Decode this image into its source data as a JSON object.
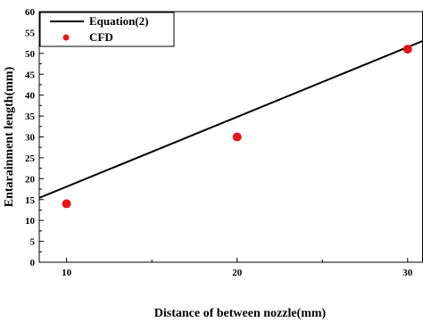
{
  "chart_data": {
    "type": "scatter",
    "xlabel": "Distance of between nozzle(mm)",
    "ylabel": "Entarainment length(mm)",
    "xlim": [
      8.4,
      30.9
    ],
    "ylim": [
      0,
      60
    ],
    "x_ticks": [
      10,
      20,
      30
    ],
    "y_ticks": [
      0,
      5,
      10,
      15,
      20,
      25,
      30,
      35,
      40,
      45,
      50,
      55,
      60
    ],
    "grid": false,
    "legend_position": "top-left",
    "series": [
      {
        "name": "Equation(2)",
        "kind": "line",
        "color": "#000000",
        "x": [
          8.4,
          30.9
        ],
        "y": [
          15.4,
          53.0
        ]
      },
      {
        "name": "CFD",
        "kind": "scatter",
        "color": "#e8141a",
        "x": [
          10,
          20,
          30
        ],
        "y": [
          14,
          30,
          51
        ]
      }
    ]
  }
}
